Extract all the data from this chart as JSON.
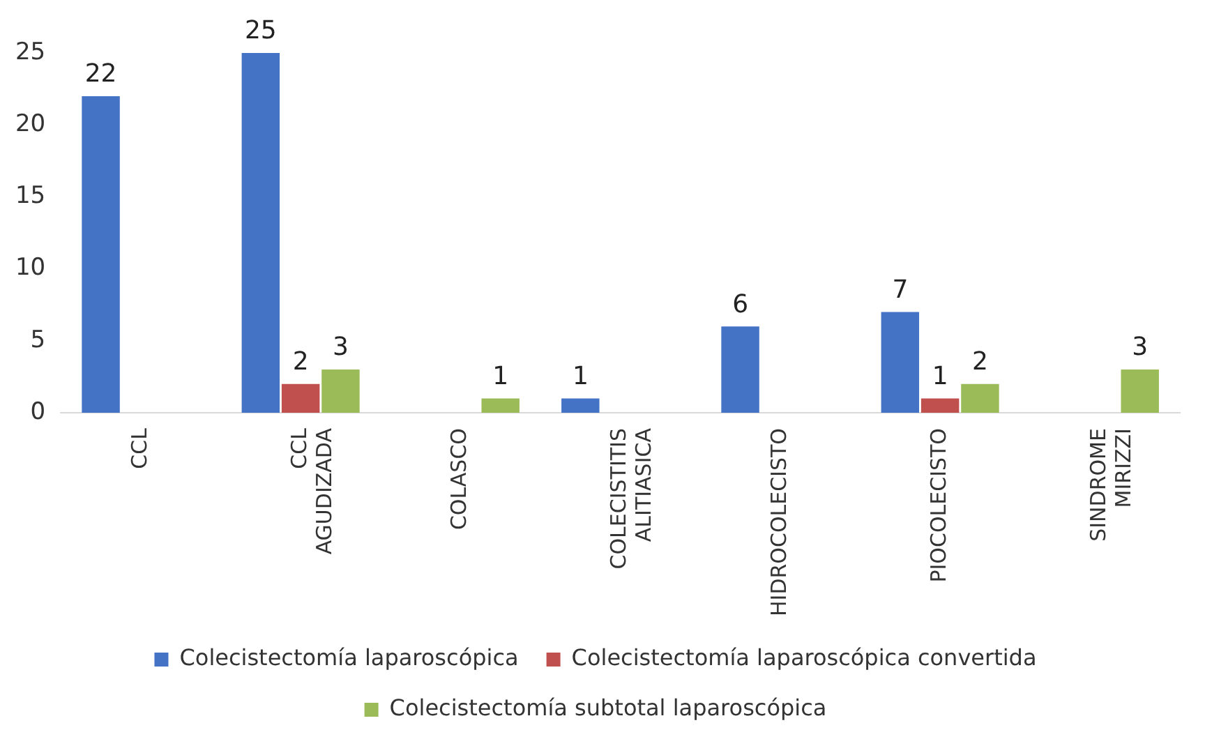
{
  "chart_data": {
    "type": "bar",
    "categories": [
      "CCL",
      "CCL AGUDIZADA",
      "COLASCO",
      "COLECISTITIS ALITIASICA",
      "HIDROCOLECISTO",
      "PIOCOLECISTO",
      "SINDROME MIRIZZI"
    ],
    "series": [
      {
        "name": "Colecistectomía laparoscópica",
        "color": "#4472c4",
        "values": [
          22,
          25,
          null,
          1,
          6,
          7,
          null
        ]
      },
      {
        "name": "Colecistectomía laparoscópica convertida",
        "color": "#c0504d",
        "values": [
          null,
          2,
          null,
          null,
          null,
          1,
          null
        ]
      },
      {
        "name": "Colecistectomía subtotal laparoscópica",
        "color": "#9bbb59",
        "values": [
          null,
          3,
          1,
          null,
          null,
          2,
          3
        ]
      }
    ],
    "ylim": [
      0,
      25
    ],
    "yticks": [
      0,
      5,
      10,
      15,
      20,
      25
    ],
    "grid": false,
    "legend": "bottom",
    "data_labels": true
  }
}
